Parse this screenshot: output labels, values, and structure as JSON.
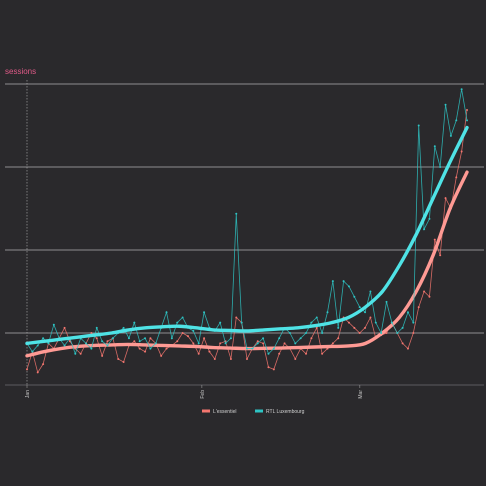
{
  "chart_data": {
    "type": "line",
    "ylabel": "sessions",
    "x_ticks": [
      {
        "label": "Jan",
        "day": 0
      },
      {
        "label": "Feb",
        "day": 31
      },
      {
        "label": "Mar",
        "day": 59
      }
    ],
    "xlim": [
      0,
      78
    ],
    "ylim": [
      -40,
      260
    ],
    "y_gridlines": [
      0,
      80,
      160,
      240
    ],
    "grid": true,
    "legend_position": "bottom",
    "series": [
      {
        "name": "L'essentiel",
        "color": "#f4766f",
        "values": [
          -35,
          -18,
          -38,
          -30,
          -10,
          -15,
          -5,
          5,
          -8,
          -15,
          -20,
          -10,
          0,
          -5,
          -22,
          -8,
          -5,
          -25,
          -28,
          -12,
          -8,
          -15,
          -18,
          -5,
          -10,
          -22,
          -15,
          -12,
          -8,
          0,
          -3,
          -10,
          -20,
          -5,
          -18,
          -25,
          -10,
          -8,
          -25,
          15,
          10,
          -25,
          -15,
          -8,
          -10,
          -33,
          -35,
          -20,
          -10,
          -15,
          -25,
          -15,
          -20,
          -5,
          5,
          -20,
          -15,
          -10,
          -5,
          15,
          10,
          5,
          0,
          5,
          15,
          -5,
          -2,
          0,
          10,
          0,
          -10,
          -15,
          0,
          25,
          40,
          35,
          90,
          75,
          130,
          120,
          150,
          175,
          215
        ],
        "trend": [
          -22,
          -18,
          -15,
          -13,
          -12,
          -11.5,
          -11,
          -11.5,
          -12,
          -12.5,
          -13,
          -14,
          -14.5,
          -15,
          -14.8,
          -14.5,
          -14,
          -13.5,
          -13,
          -12.5,
          -10,
          0,
          15,
          40,
          75,
          120,
          155
        ]
      },
      {
        "name": "RTL Luxembourg",
        "color": "#2ec4c4",
        "values": [
          -10,
          -18,
          -12,
          -5,
          -10,
          8,
          -5,
          -12,
          -5,
          -20,
          -5,
          -10,
          -15,
          5,
          -8,
          -12,
          -5,
          0,
          5,
          -5,
          10,
          -8,
          -5,
          -15,
          -10,
          5,
          20,
          -5,
          10,
          15,
          5,
          2,
          -10,
          20,
          5,
          2,
          10,
          -10,
          -5,
          115,
          10,
          -15,
          -15,
          -10,
          -5,
          -20,
          -15,
          -5,
          5,
          0,
          -10,
          -5,
          0,
          10,
          15,
          0,
          20,
          50,
          5,
          50,
          45,
          35,
          25,
          20,
          40,
          10,
          0,
          30,
          10,
          0,
          5,
          20,
          10,
          200,
          100,
          110,
          180,
          160,
          220,
          190,
          205,
          235,
          205
        ],
        "trend": [
          -10,
          -8,
          -6,
          -4,
          -2,
          0,
          3,
          5,
          6,
          6.5,
          5,
          3,
          2.5,
          2,
          3,
          4,
          5,
          7,
          10,
          15,
          25,
          40,
          65,
          95,
          130,
          165,
          198
        ]
      }
    ]
  }
}
